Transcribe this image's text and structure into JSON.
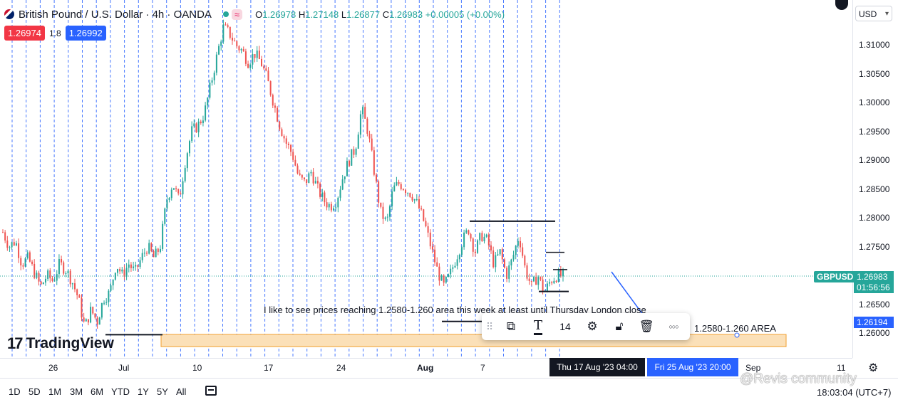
{
  "header": {
    "symbol_title": "British Pound / U.S. Dollar · 4h · OANDA",
    "wave_badge": "≈",
    "ohlc": {
      "o_key": "O",
      "o": "1.26978",
      "h_key": "H",
      "h": "1.27148",
      "l_key": "L",
      "l": "1.26877",
      "c_key": "C",
      "c": "1.26983",
      "change": "+0.00005 (+0.00%)"
    }
  },
  "trade": {
    "sell": "1.26974",
    "spread": "1.8",
    "buy": "1.26992"
  },
  "currency_select": "USD",
  "price_scale": {
    "labels": [
      "1.31000",
      "1.30500",
      "1.30000",
      "1.29500",
      "1.29000",
      "1.28500",
      "1.28000",
      "1.27500",
      "1.27000",
      "1.26500",
      "1.26000"
    ],
    "symbol_tag": "GBPUSD",
    "current_price": "1.26983",
    "countdown": "01:56:56",
    "drawing_price": "1.26194"
  },
  "annotation": {
    "text": "I like to see prices reaching 1.2580-1.260 area this week at least until Thursday London close",
    "area_label": "1.2580-1.260 AREA"
  },
  "branding": {
    "logo_mark": "17",
    "logo_text": "TradingView"
  },
  "toolbar": {
    "font_size": "14",
    "more": "○○○"
  },
  "time_axis": {
    "labels": [
      "26",
      "Jul",
      "10",
      "17",
      "24",
      "Aug",
      "7",
      "Sep",
      "11"
    ],
    "crosshair_time": "Thu 17 Aug '23   04:00",
    "drawing_time": "Fri 25 Aug '23   20:00"
  },
  "bottom_bar": {
    "ranges": [
      "1D",
      "5D",
      "1M",
      "3M",
      "6M",
      "YTD",
      "1Y",
      "5Y",
      "All"
    ],
    "clock": "18:03:04 (UTC+7)"
  },
  "watermark": "@Revis community",
  "colors": {
    "up": "#26a69a",
    "down": "#ef5350",
    "accent": "#2962ff",
    "area_fill": "#fbe0b8",
    "area_border": "#f0a030"
  },
  "chart_data": {
    "type": "candlestick",
    "timeframe": "4h",
    "close_path": [
      1.2775,
      1.275,
      1.276,
      1.272,
      1.273,
      1.2705,
      1.268,
      1.27,
      1.269,
      1.272,
      1.271,
      1.269,
      1.266,
      1.261,
      1.264,
      1.262,
      1.266,
      1.267,
      1.272,
      1.27,
      1.272,
      1.2705,
      1.273,
      1.275,
      1.273,
      1.275,
      1.283,
      1.286,
      1.283,
      1.29,
      1.295,
      1.296,
      1.298,
      1.303,
      1.308,
      1.313,
      1.312,
      1.31,
      1.309,
      1.307,
      1.3085,
      1.307,
      1.304,
      1.3,
      1.296,
      1.293,
      1.291,
      1.287,
      1.286,
      1.288,
      1.285,
      1.283,
      1.282,
      1.283,
      1.287,
      1.29,
      1.292,
      1.299,
      1.295,
      1.288,
      1.281,
      1.279,
      1.285,
      1.286,
      1.285,
      1.284,
      1.282,
      1.279,
      1.275,
      1.271,
      1.268,
      1.27,
      1.273,
      1.276,
      1.278,
      1.274,
      1.277,
      1.276,
      1.272,
      1.274,
      1.27,
      1.273,
      1.277,
      1.271,
      1.268,
      1.27,
      1.267,
      1.269,
      1.27,
      1.2698
    ],
    "price_levels": {
      "resistance": 1.2794,
      "box_top": 1.274,
      "box_mid": 1.271,
      "box_bottom": 1.2672,
      "support_left": 1.2597,
      "support_mid": 1.262
    },
    "target_area": [
      1.258,
      1.26
    ],
    "ylim": [
      1.2585,
      1.3145
    ],
    "x_dates": [
      "26",
      "Jul",
      "10",
      "17",
      "24",
      "Aug",
      "7",
      "Sep",
      "11"
    ]
  }
}
